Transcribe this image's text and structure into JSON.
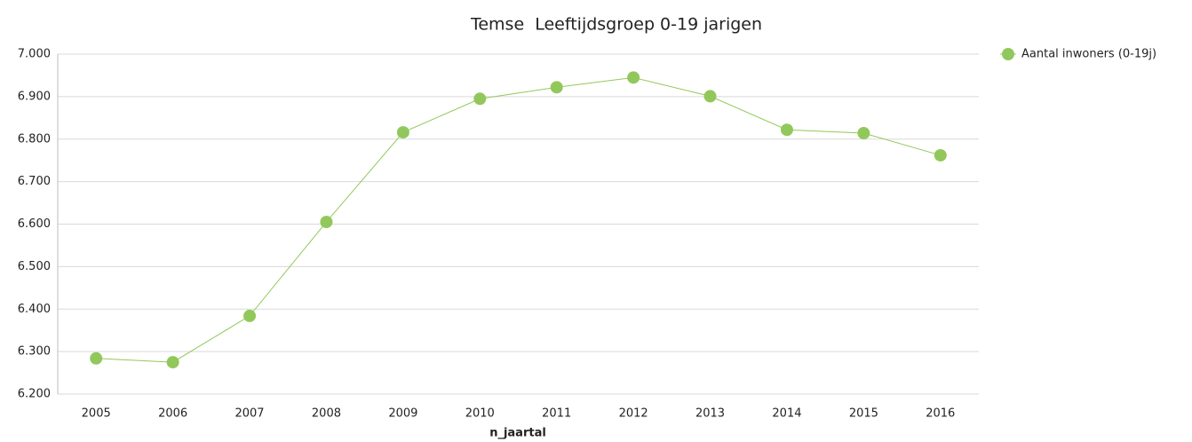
{
  "chart_data": {
    "type": "line",
    "title": "Temse  Leeftijdsgroep 0-19 jarigen",
    "x_label": "n_jaartal",
    "categories": [
      "2005",
      "2006",
      "2007",
      "2008",
      "2009",
      "2010",
      "2011",
      "2012",
      "2013",
      "2014",
      "2015",
      "2016"
    ],
    "series": [
      {
        "name": "Aantal inwoners (0-19j)",
        "color": "#92c85b",
        "values": [
          6284,
          6275,
          6384,
          6605,
          6816,
          6895,
          6922,
          6945,
          6901,
          6822,
          6814,
          6762
        ]
      }
    ],
    "ylim": [
      6200,
      7000
    ],
    "yticks": [
      {
        "value": 6200,
        "label": "6.200"
      },
      {
        "value": 6300,
        "label": "6.300"
      },
      {
        "value": 6400,
        "label": "6.400"
      },
      {
        "value": 6500,
        "label": "6.500"
      },
      {
        "value": 6600,
        "label": "6.600"
      },
      {
        "value": 6700,
        "label": "6.700"
      },
      {
        "value": 6800,
        "label": "6.800"
      },
      {
        "value": 6900,
        "label": "6.900"
      },
      {
        "value": 7000,
        "label": "7.000"
      }
    ],
    "grid": true,
    "legend": "top-right"
  }
}
